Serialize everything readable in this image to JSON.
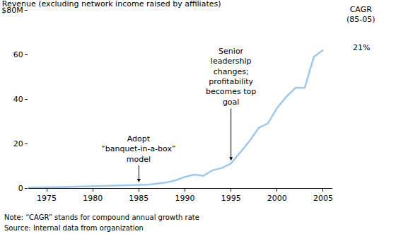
{
  "chart_data": {
    "type": "line",
    "title": "Revenue (excluding network income raised by affiliates)",
    "x": [
      1973,
      1974,
      1975,
      1976,
      1977,
      1978,
      1979,
      1980,
      1981,
      1982,
      1983,
      1984,
      1985,
      1986,
      1987,
      1988,
      1989,
      1990,
      1991,
      1992,
      1993,
      1994,
      1995,
      1996,
      1997,
      1998,
      1999,
      2000,
      2001,
      2002,
      2003,
      2004,
      2005
    ],
    "values": [
      0.2,
      0.2,
      0.3,
      0.4,
      0.5,
      0.6,
      0.7,
      0.8,
      0.9,
      1.0,
      1.1,
      1.2,
      1.3,
      1.5,
      2.0,
      2.5,
      3.5,
      5.0,
      6.0,
      5.5,
      8.0,
      9.0,
      11.0,
      16.0,
      21.0,
      27.0,
      29.0,
      36.0,
      41.0,
      45.0,
      45.0,
      59.0,
      62.0
    ],
    "color": "#9cc8f0",
    "xlim": [
      1973,
      2006
    ],
    "xticks": [
      1975,
      1980,
      1985,
      1990,
      1995,
      2000,
      2005
    ],
    "ylim": [
      0,
      80
    ],
    "yticks": [
      0,
      20,
      40,
      60,
      {
        "value": 80,
        "label": "$80M"
      }
    ],
    "grid": false,
    "annotations": [
      {
        "text": "Adopt\n“banquet-in-a-box”\nmodel",
        "x": 1985
      },
      {
        "text": "Senior\nleadership\nchanges;\nprofitability\nbecomes top\ngoal",
        "x": 1995
      }
    ],
    "side_label": {
      "title": "CAGR\n(85-05)",
      "value": "21%"
    },
    "notes": [
      "Note: “CAGR” stands for compound annual growth rate",
      "Source: Internal data from organization"
    ]
  }
}
